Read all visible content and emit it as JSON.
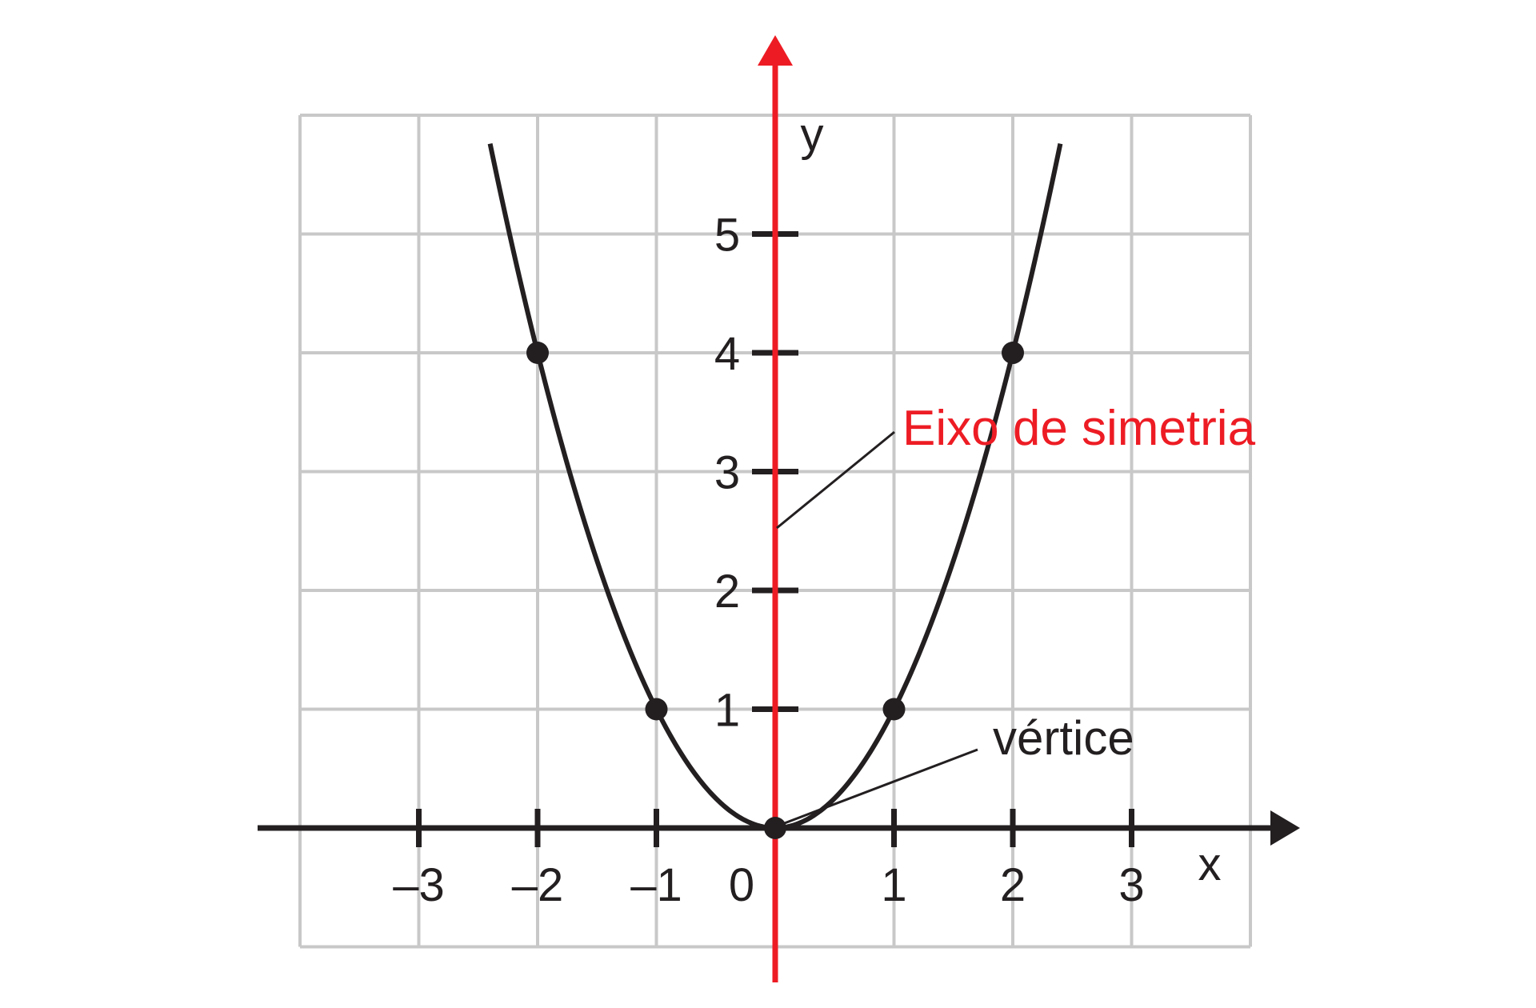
{
  "chart_data": {
    "type": "line",
    "series": [
      {
        "x": [
          -2,
          -1,
          0,
          1,
          2
        ],
        "y": [
          4,
          1,
          0,
          1,
          4
        ],
        "curve": "y = x^2"
      }
    ],
    "x_tick_labels": [
      "–3",
      "–2",
      "–1",
      "0",
      "1",
      "2",
      "3"
    ],
    "x_ticks": [
      -3,
      -2,
      -1,
      0,
      1,
      2,
      3
    ],
    "y_tick_labels": [
      "1",
      "2",
      "3",
      "4",
      "5"
    ],
    "y_ticks": [
      1,
      2,
      3,
      4,
      5
    ],
    "xlabel": "x",
    "ylabel": "y",
    "xlim": [
      -4,
      4
    ],
    "ylim": [
      -1,
      6
    ],
    "grid": true,
    "annotations": {
      "axis_of_symmetry": "Eixo de simetria",
      "vertex": "vértice"
    },
    "colors": {
      "curve": "#231f20",
      "axis_of_symmetry": "#ed1c24",
      "grid": "#c8c8c8"
    }
  }
}
